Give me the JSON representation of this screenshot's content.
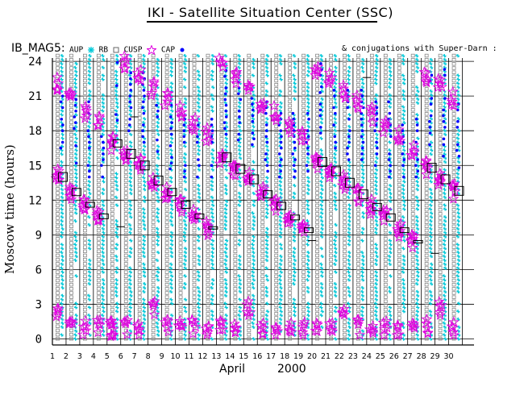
{
  "header": {
    "title": "IKI - Satellite Situation Center (SSC)",
    "subtitle": "IB_MAG5:",
    "conjugation_note": "& conjugations with Super-Darn :"
  },
  "legend": {
    "items": [
      {
        "label": "AUP",
        "symbol": "asterisk",
        "color": "#00c8d8"
      },
      {
        "label": "RB",
        "symbol": "square",
        "color": "#888888"
      },
      {
        "label": "CUSP",
        "symbol": "square-small",
        "color": "#888888"
      },
      {
        "label": "CAP",
        "symbol": "star",
        "color": "#e000e0"
      },
      {
        "label": "",
        "symbol": "dot",
        "color": "#0000ff"
      }
    ]
  },
  "chart_data": {
    "type": "scatter",
    "ylabel": "Moscow time (hours)",
    "xlabel_month": "April",
    "xlabel_year": "2000",
    "x_ticks": [
      1,
      2,
      3,
      4,
      5,
      6,
      7,
      8,
      9,
      10,
      11,
      12,
      13,
      14,
      15,
      16,
      17,
      18,
      19,
      20,
      21,
      22,
      23,
      24,
      25,
      26,
      27,
      28,
      29,
      30
    ],
    "y_ticks": [
      0,
      3,
      6,
      9,
      12,
      15,
      18,
      21,
      24
    ],
    "xlim": [
      1,
      31
    ],
    "ylim": [
      -0.3,
      24.8
    ],
    "grid": true,
    "colors": {
      "aup": "#00c8d8",
      "rb": "#888888",
      "cap": "#e000e0",
      "dot": "#0000ff",
      "axis": "#000000"
    },
    "conjugation_boxes": [
      {
        "day": 2,
        "hour": 14.0,
        "size": "large"
      },
      {
        "day": 3,
        "hour": 12.7,
        "size": "medium"
      },
      {
        "day": 4,
        "hour": 11.6,
        "size": "small"
      },
      {
        "day": 5,
        "hour": 10.6,
        "size": "small"
      },
      {
        "day": 6,
        "hour": 16.9,
        "size": "medium"
      },
      {
        "day": 7,
        "hour": 16.0,
        "size": "large"
      },
      {
        "day": 8,
        "hour": 15.0,
        "size": "large"
      },
      {
        "day": 9,
        "hour": 13.7,
        "size": "large"
      },
      {
        "day": 10,
        "hour": 12.7,
        "size": "medium"
      },
      {
        "day": 11,
        "hour": 11.6,
        "size": "medium"
      },
      {
        "day": 12,
        "hour": 10.6,
        "size": "small"
      },
      {
        "day": 13,
        "hour": 9.6,
        "size": "tiny"
      },
      {
        "day": 14,
        "hour": 15.7,
        "size": "large"
      },
      {
        "day": 15,
        "hour": 14.7,
        "size": "large"
      },
      {
        "day": 16,
        "hour": 13.8,
        "size": "large"
      },
      {
        "day": 17,
        "hour": 12.5,
        "size": "medium"
      },
      {
        "day": 18,
        "hour": 11.5,
        "size": "medium"
      },
      {
        "day": 19,
        "hour": 10.5,
        "size": "small"
      },
      {
        "day": 20,
        "hour": 9.4,
        "size": "small"
      },
      {
        "day": 21,
        "hour": 15.3,
        "size": "large"
      },
      {
        "day": 22,
        "hour": 14.5,
        "size": "large"
      },
      {
        "day": 23,
        "hour": 13.5,
        "size": "large"
      },
      {
        "day": 24,
        "hour": 12.5,
        "size": "large"
      },
      {
        "day": 25,
        "hour": 11.4,
        "size": "medium"
      },
      {
        "day": 26,
        "hour": 10.5,
        "size": "medium"
      },
      {
        "day": 27,
        "hour": 9.4,
        "size": "small"
      },
      {
        "day": 28,
        "hour": 8.4,
        "size": "tiny"
      },
      {
        "day": 29,
        "hour": 14.8,
        "size": "large"
      },
      {
        "day": 30,
        "hour": 13.8,
        "size": "large"
      },
      {
        "day": 31,
        "hour": 12.8,
        "size": "large"
      }
    ],
    "dash_marks": [
      {
        "day": 6,
        "hour": 9.7
      },
      {
        "day": 7,
        "hour": 19.2
      },
      {
        "day": 20,
        "hour": 8.5
      },
      {
        "day": 24,
        "hour": 22.6
      },
      {
        "day": 29,
        "hour": 7.4
      }
    ]
  }
}
